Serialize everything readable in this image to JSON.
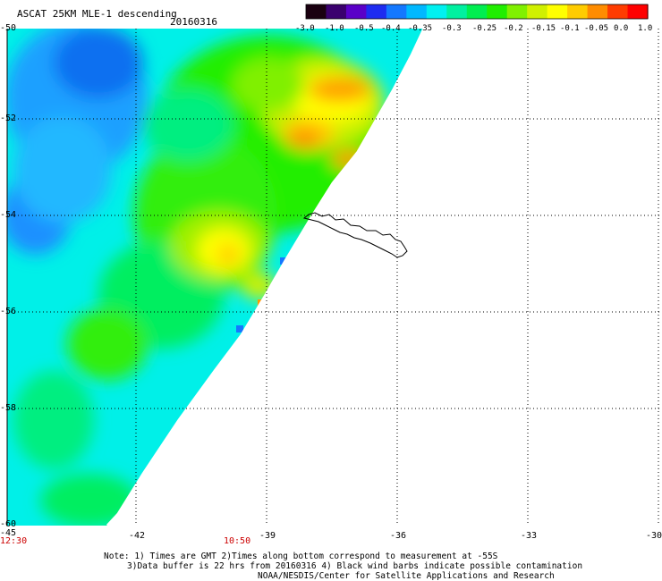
{
  "header": {
    "title": "ASCAT 25KM MLE-1 descending",
    "date": "20160316"
  },
  "colorbar": {
    "colors": [
      "#1a0010",
      "#3a006e",
      "#5a00c8",
      "#1e2cf0",
      "#1478ff",
      "#00b8ff",
      "#00f0f0",
      "#00f0a0",
      "#00ee50",
      "#20ee00",
      "#80f000",
      "#d0f000",
      "#ffff00",
      "#ffcc00",
      "#ff8c00",
      "#ff3c00",
      "#ff0000"
    ],
    "tick_labels": [
      "-3.0",
      "-1.0",
      "-0.5",
      "-0.4",
      "-0.35",
      "-0.3",
      "-0.25",
      "-0.2",
      "-0.15",
      "-0.1",
      "-0.05",
      "0.0",
      "1.0"
    ]
  },
  "axes": {
    "y_labels": [
      "-50",
      "-52",
      "-54",
      "-56",
      "-58",
      "-60"
    ],
    "x_labels": [
      "-45",
      "-42",
      "-39",
      "-36",
      "-33",
      "-30"
    ]
  },
  "times": {
    "left": "12:30",
    "middle": "10:50"
  },
  "notes": {
    "line1": "Note: 1) Times are GMT 2)Times along bottom correspond to measurement at -55S",
    "line2": "3)Data buffer is 22 hrs from 20160316 4) Black wind barbs indicate possible contamination",
    "line3": "NOAA/NESDIS/Center for Satellite Applications and Research"
  }
}
